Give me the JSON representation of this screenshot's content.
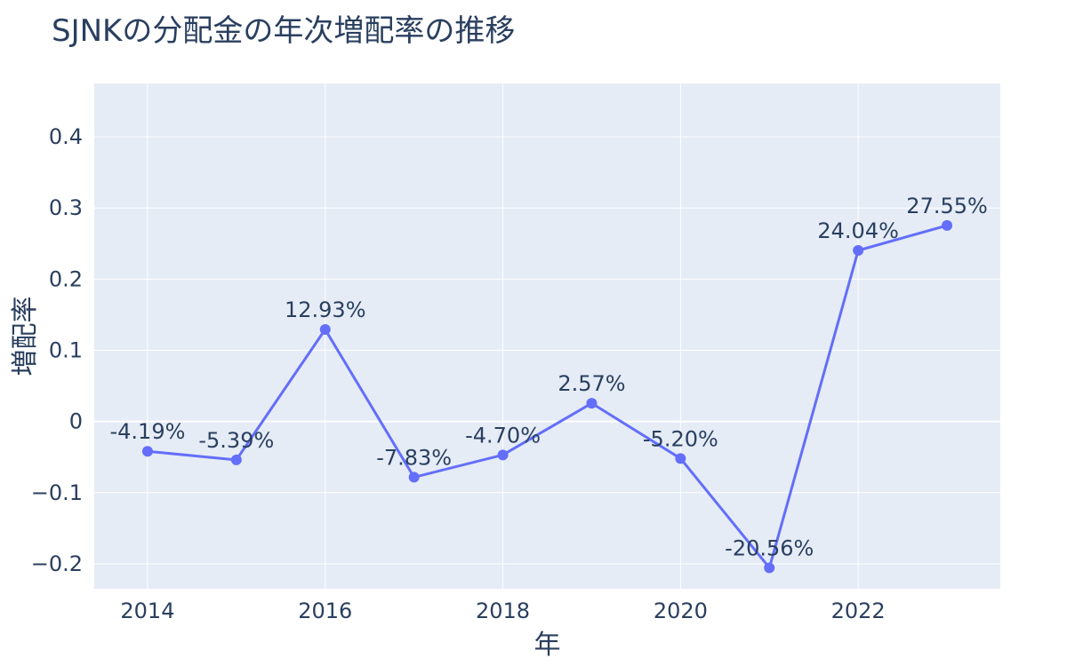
{
  "chart_data": {
    "type": "line",
    "title": "SJNKの分配金の年次増配率の推移",
    "xlabel": "年",
    "ylabel": "増配率",
    "x": [
      2014,
      2015,
      2016,
      2017,
      2018,
      2019,
      2020,
      2021,
      2022,
      2023
    ],
    "series": [
      {
        "values": [
          -0.0419,
          -0.0539,
          0.1293,
          -0.0783,
          -0.047,
          0.0257,
          -0.052,
          -0.2056,
          0.2404,
          0.2755
        ],
        "labels": [
          "-4.19%",
          "-5.39%",
          "12.93%",
          "-7.83%",
          "-4.70%",
          "2.57%",
          "-5.20%",
          "-20.56%",
          "24.04%",
          "27.55%"
        ]
      }
    ],
    "x_ticks": [
      "2014",
      "2016",
      "2018",
      "2020",
      "2022"
    ],
    "y_ticks": [
      "0.4",
      "0.3",
      "0.2",
      "0.1",
      "0",
      "−0.1",
      "−0.2"
    ],
    "xlim": [
      2013.4,
      2023.6
    ],
    "ylim": [
      -0.235,
      0.475
    ],
    "grid": true,
    "colors": {
      "line": "#636efa",
      "plot_bg": "#e5ecf6",
      "grid": "#ffffff",
      "text": "#2a3f5f"
    }
  }
}
